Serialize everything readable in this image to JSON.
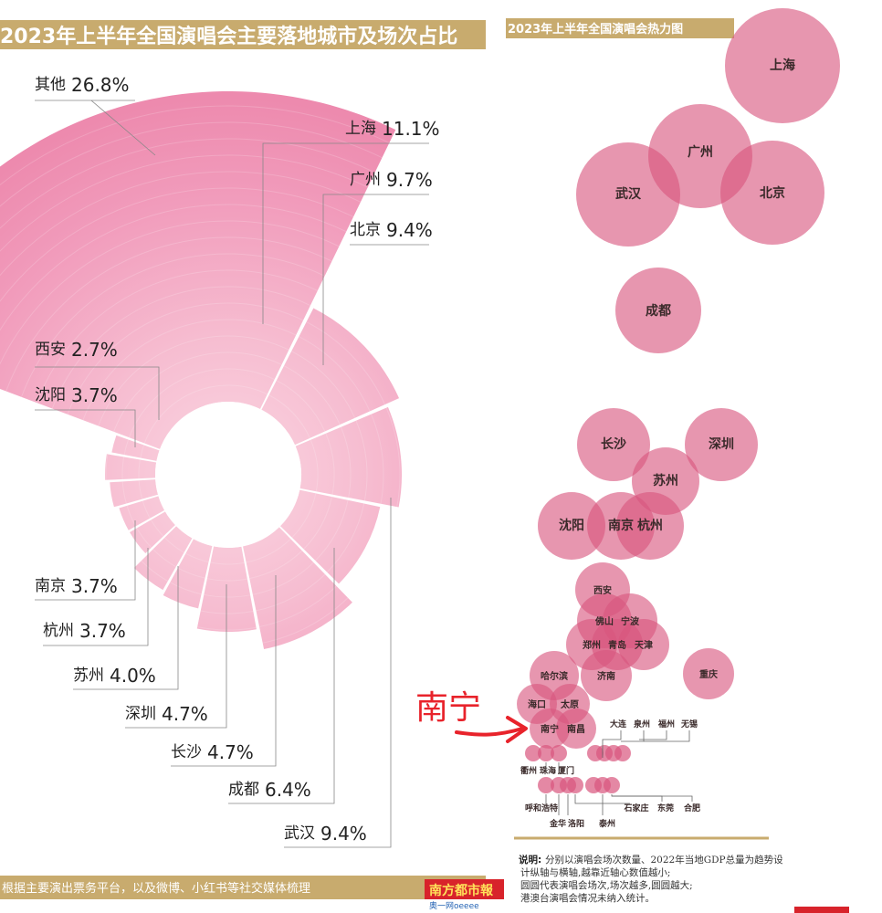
{
  "left_title": "2023年上半年全国演唱会主要落地城市及场次占比",
  "right_title": "2023年上半年全国演唱会热力图",
  "footer_left": "根据主要演出票务平台，以及微博、小红书等社交媒体梳理",
  "footer_logo": "南方都市報",
  "footer_sub": "奥一网oeeee",
  "annotation_red": "南宁",
  "note_title": "说明:",
  "note_lines": [
    "分别以演唱会场次数量、2022年当地GDP总量为趋势设",
    "计纵轴与横轴,越靠近轴心数值越小;",
    "圆圆代表演唱会场次,场次越多,圆圆越大;",
    "港澳台演唱会情况未纳入统计。"
  ],
  "colors": {
    "banner": "#c8ab6e",
    "wedge": "#ee8fb1",
    "bubble": "#d9567e",
    "red": "#e8232b"
  },
  "chart_data": [
    {
      "type": "pie",
      "title": "2023年上半年全国演唱会主要落地城市及场次占比",
      "categories": [
        "其他",
        "上海",
        "广州",
        "北京",
        "武汉",
        "成都",
        "长沙",
        "深圳",
        "苏州",
        "杭州",
        "南京",
        "沈阳",
        "西安"
      ],
      "labels": [
        "其他",
        "上海",
        "广州",
        "北京",
        "武汉",
        "成都",
        "长沙",
        "深圳",
        "苏州",
        "杭州",
        "南京",
        "沈阳",
        "西安"
      ],
      "pct_labels": [
        "26.8%",
        "11.1%",
        "9.7%",
        "9.4%",
        "9.4%",
        "6.4%",
        "4.7%",
        "4.7%",
        "4.0%",
        "3.7%",
        "3.7%",
        "3.7%",
        "2.7%"
      ],
      "values": [
        26.8,
        11.1,
        9.7,
        9.4,
        9.4,
        6.4,
        4.7,
        4.7,
        4.0,
        3.7,
        3.7,
        3.7,
        2.7
      ]
    },
    {
      "type": "scatter",
      "title": "2023年上半年全国演唱会热力图",
      "cities": [
        "上海",
        "广州",
        "武汉",
        "北京",
        "成都",
        "长沙",
        "深圳",
        "苏州",
        "沈阳",
        "南京",
        "杭州",
        "西安",
        "佛山",
        "宁波",
        "郑州",
        "青岛",
        "天津",
        "济南",
        "重庆",
        "哈尔滨",
        "海口",
        "太原",
        "南宁",
        "南昌",
        "大连",
        "泉州",
        "福州",
        "无锡",
        "衢州",
        "珠海",
        "厦门",
        "呼和浩特",
        "金华",
        "洛阳",
        "泰州",
        "石家庄",
        "东莞",
        "合肥"
      ]
    }
  ]
}
